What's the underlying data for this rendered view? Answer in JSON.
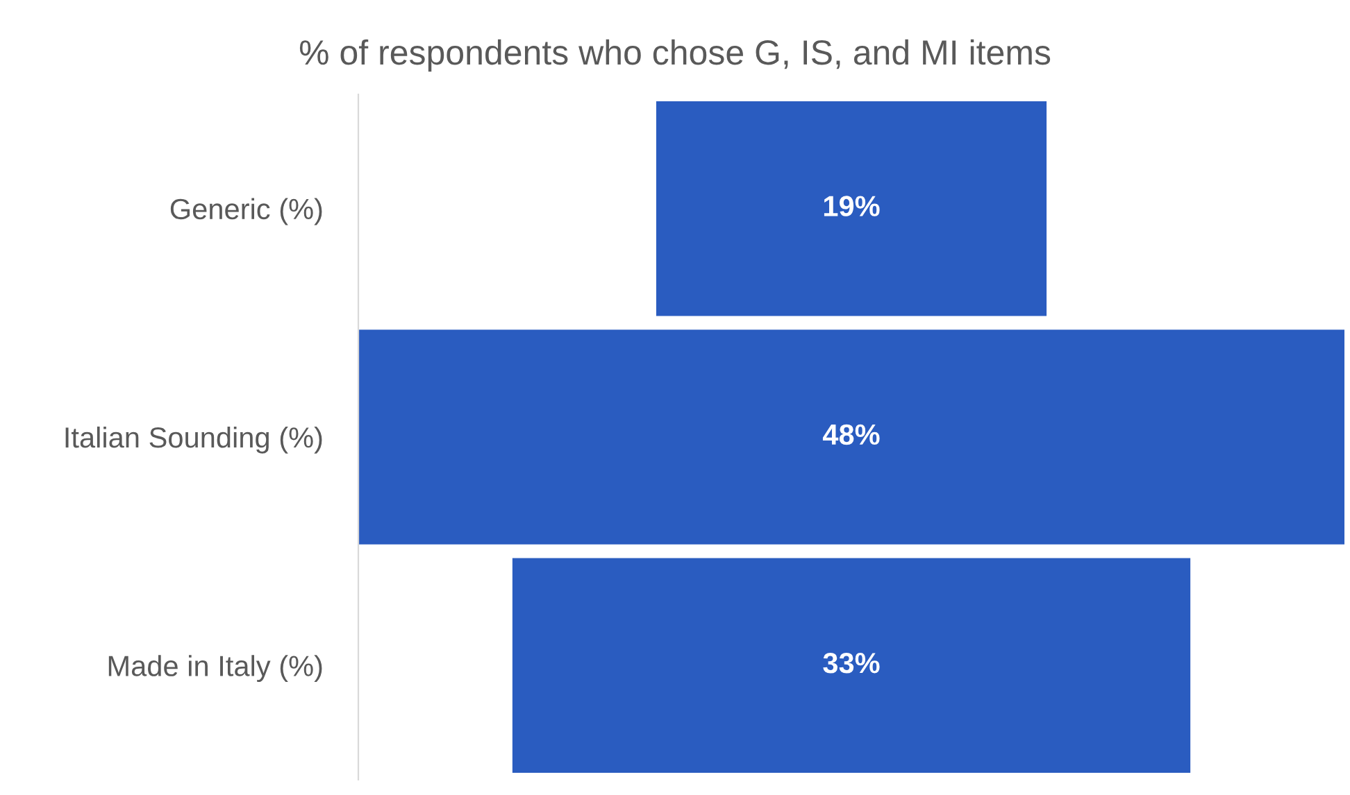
{
  "chart_data": {
    "type": "other",
    "title": "% of respondents who chose G, IS, and MI items",
    "categories": [
      "Generic (%)",
      "Italian Sounding (%)",
      "Made in Italy (%)"
    ],
    "values": [
      19,
      48,
      33
    ],
    "value_labels": [
      "19%",
      "48%",
      "33%"
    ],
    "color": "#2a5cc0"
  }
}
